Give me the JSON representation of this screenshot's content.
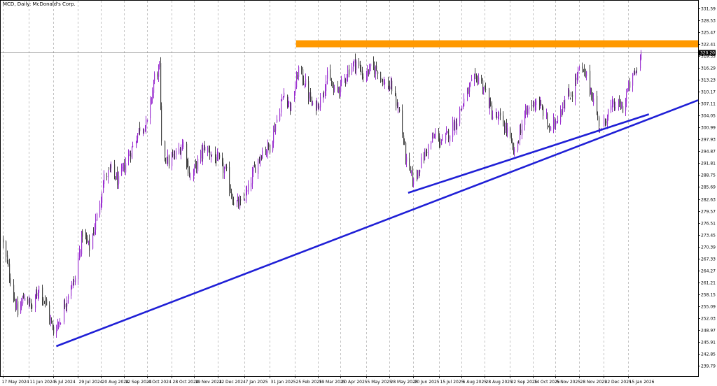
{
  "chart_data": {
    "type": "candlestick",
    "title": "MCD, Daily:  McDonald's Corp.",
    "y_axis": {
      "position": "right",
      "ticks": [
        "331.59",
        "328.53",
        "325.47",
        "322.41",
        "319.35",
        "316.29",
        "313.23",
        "310.17",
        "307.11",
        "304.05",
        "300.99",
        "297.93",
        "294.87",
        "291.81",
        "288.75",
        "285.69",
        "282.63",
        "279.57",
        "276.51",
        "273.45",
        "270.39",
        "267.33",
        "264.27",
        "261.21",
        "258.15",
        "255.09",
        "252.03",
        "248.97",
        "245.91",
        "242.85",
        "239.79"
      ],
      "range": [
        238.5,
        333.8
      ]
    },
    "x_axis": {
      "ticks": [
        "17 May 2024",
        "11 Jun 2024",
        "5 Jul 2024",
        "29 Jul 2024",
        "20 Aug 2024",
        "12 Sep 2024",
        "4 Oct 2024",
        "28 Oct 2024",
        "19 Nov 2024",
        "12 Dec 2024",
        "7 Jan 2025",
        "31 Jan 2025",
        "25 Feb 2025",
        "19 Mar 2025",
        "10 Apr 2025",
        "5 May 2025",
        "28 May 2025",
        "20 Jun 2025",
        "15 Jul 2025",
        "6 Aug 2025",
        "28 Aug 2025",
        "22 Sep 2025",
        "14 Oct 2025",
        "5 Nov 2025",
        "28 Nov 2025",
        "22 Dec 2025",
        "15 Jan 2026"
      ]
    },
    "grid": true,
    "current_price": {
      "label": "320.20",
      "value": 320.2
    },
    "bull_color": "#9b30d0",
    "bear_color": "#404040",
    "resistance_zone": {
      "from_date": "26 Feb 2025",
      "y_low": 321.6,
      "y_high": 323.4,
      "color": "#ff9900"
    },
    "trendlines": [
      {
        "from": {
          "date": "8 Jul 2024",
          "price": 244.8
        },
        "to": {
          "date": "end of chart",
          "price": 308.0
        },
        "color": "#1f1fd6"
      },
      {
        "from": {
          "date": "15 Jun 2025",
          "price": 284.2
        },
        "to": {
          "date": "4 Feb 2026",
          "price": 304.4
        },
        "color": "#1f1fd6"
      }
    ],
    "anchors": [
      {
        "date": "17 May 2024",
        "close": 271.0
      },
      {
        "date": "24 May 2024",
        "close": 262.0
      },
      {
        "date": "31 May 2024",
        "close": 253.0
      },
      {
        "date": "7 Jun 2024",
        "close": 258.0
      },
      {
        "date": "14 Jun 2024",
        "close": 254.5
      },
      {
        "date": "21 Jun 2024",
        "close": 260.0
      },
      {
        "date": "28 Jun 2024",
        "close": 255.0
      },
      {
        "date": "5 Jul 2024",
        "close": 248.5
      },
      {
        "date": "12 Jul 2024",
        "close": 252.0
      },
      {
        "date": "19 Jul 2024",
        "close": 258.5
      },
      {
        "date": "26 Jul 2024",
        "close": 262.0
      },
      {
        "date": "2 Aug 2024",
        "close": 274.0
      },
      {
        "date": "9 Aug 2024",
        "close": 270.0
      },
      {
        "date": "16 Aug 2024",
        "close": 278.0
      },
      {
        "date": "23 Aug 2024",
        "close": 288.0
      },
      {
        "date": "30 Aug 2024",
        "close": 290.0
      },
      {
        "date": "6 Sep 2024",
        "close": 287.0
      },
      {
        "date": "13 Sep 2024",
        "close": 292.0
      },
      {
        "date": "20 Sep 2024",
        "close": 296.0
      },
      {
        "date": "27 Sep 2024",
        "close": 301.0
      },
      {
        "date": "4 Oct 2024",
        "close": 302.0
      },
      {
        "date": "11 Oct 2024",
        "close": 314.0
      },
      {
        "date": "16 Oct 2024",
        "close": 316.0
      },
      {
        "date": "18 Oct 2024",
        "close": 296.0
      },
      {
        "date": "25 Oct 2024",
        "close": 292.0
      },
      {
        "date": "1 Nov 2024",
        "close": 294.0
      },
      {
        "date": "8 Nov 2024",
        "close": 297.0
      },
      {
        "date": "15 Nov 2024",
        "close": 288.0
      },
      {
        "date": "22 Nov 2024",
        "close": 292.0
      },
      {
        "date": "29 Nov 2024",
        "close": 296.0
      },
      {
        "date": "6 Dec 2024",
        "close": 294.0
      },
      {
        "date": "13 Dec 2024",
        "close": 292.0
      },
      {
        "date": "20 Dec 2024",
        "close": 289.0
      },
      {
        "date": "27 Dec 2024",
        "close": 282.0
      },
      {
        "date": "3 Jan 2025",
        "close": 281.0
      },
      {
        "date": "10 Jan 2025",
        "close": 285.0
      },
      {
        "date": "17 Jan 2025",
        "close": 291.0
      },
      {
        "date": "24 Jan 2025",
        "close": 295.0
      },
      {
        "date": "31 Jan 2025",
        "close": 296.0
      },
      {
        "date": "7 Feb 2025",
        "close": 303.0
      },
      {
        "date": "14 Feb 2025",
        "close": 310.0
      },
      {
        "date": "21 Feb 2025",
        "close": 306.0
      },
      {
        "date": "28 Feb 2025",
        "close": 316.0
      },
      {
        "date": "7 Mar 2025",
        "close": 312.0
      },
      {
        "date": "14 Mar 2025",
        "close": 306.0
      },
      {
        "date": "21 Mar 2025",
        "close": 308.0
      },
      {
        "date": "28 Mar 2025",
        "close": 314.0
      },
      {
        "date": "4 Apr 2025",
        "close": 310.0
      },
      {
        "date": "11 Apr 2025",
        "close": 312.0
      },
      {
        "date": "18 Apr 2025",
        "close": 316.0
      },
      {
        "date": "25 Apr 2025",
        "close": 318.0
      },
      {
        "date": "2 May 2025",
        "close": 314.0
      },
      {
        "date": "9 May 2025",
        "close": 316.0
      },
      {
        "date": "16 May 2025",
        "close": 316.0
      },
      {
        "date": "23 May 2025",
        "close": 312.0
      },
      {
        "date": "30 May 2025",
        "close": 311.0
      },
      {
        "date": "6 Jun 2025",
        "close": 305.0
      },
      {
        "date": "13 Jun 2025",
        "close": 292.0
      },
      {
        "date": "20 Jun 2025",
        "close": 287.0
      },
      {
        "date": "27 Jun 2025",
        "close": 292.0
      },
      {
        "date": "4 Jul 2025",
        "close": 296.0
      },
      {
        "date": "11 Jul 2025",
        "close": 299.0
      },
      {
        "date": "18 Jul 2025",
        "close": 297.0
      },
      {
        "date": "25 Jul 2025",
        "close": 300.0
      },
      {
        "date": "1 Aug 2025",
        "close": 303.0
      },
      {
        "date": "8 Aug 2025",
        "close": 308.0
      },
      {
        "date": "15 Aug 2025",
        "close": 312.0
      },
      {
        "date": "22 Aug 2025",
        "close": 314.0
      },
      {
        "date": "29 Aug 2025",
        "close": 310.0
      },
      {
        "date": "5 Sep 2025",
        "close": 304.0
      },
      {
        "date": "12 Sep 2025",
        "close": 303.0
      },
      {
        "date": "19 Sep 2025",
        "close": 300.0
      },
      {
        "date": "26 Sep 2025",
        "close": 294.0
      },
      {
        "date": "3 Oct 2025",
        "close": 302.0
      },
      {
        "date": "10 Oct 2025",
        "close": 306.0
      },
      {
        "date": "17 Oct 2025",
        "close": 308.0
      },
      {
        "date": "24 Oct 2025",
        "close": 305.0
      },
      {
        "date": "31 Oct 2025",
        "close": 300.0
      },
      {
        "date": "7 Nov 2025",
        "close": 304.0
      },
      {
        "date": "14 Nov 2025",
        "close": 308.0
      },
      {
        "date": "21 Nov 2025",
        "close": 310.0
      },
      {
        "date": "28 Nov 2025",
        "close": 316.0
      },
      {
        "date": "5 Dec 2025",
        "close": 314.0
      },
      {
        "date": "12 Dec 2025",
        "close": 308.0
      },
      {
        "date": "19 Dec 2025",
        "close": 300.0
      },
      {
        "date": "26 Dec 2025",
        "close": 305.0
      },
      {
        "date": "2 Jan 2026",
        "close": 307.0
      },
      {
        "date": "9 Jan 2026",
        "close": 306.0
      },
      {
        "date": "16 Jan 2026",
        "close": 312.0
      },
      {
        "date": "23 Jan 2026",
        "close": 316.0
      },
      {
        "date": "27 Jan 2026",
        "close": 320.2
      }
    ]
  }
}
